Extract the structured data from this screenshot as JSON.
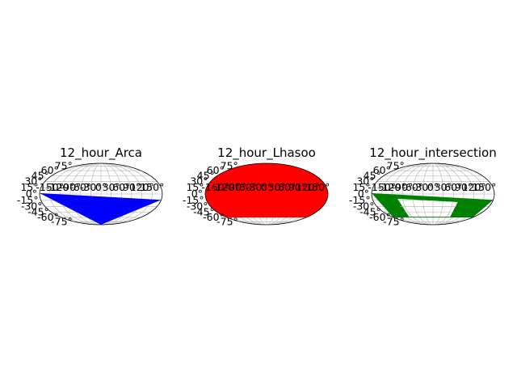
{
  "chart_data": [
    {
      "type": "map",
      "projection": "mollweide",
      "title": "12_hour_Arca",
      "fill_color": "#0000ff",
      "coverage": "region below a declination boundary running from about 0° on the left edge to about -15° on the right edge",
      "lat_ticks": [
        "-75°",
        "-60°",
        "-45°",
        "-30°",
        "-15°",
        "0°",
        "15°",
        "30°",
        "45°",
        "60°",
        "75°"
      ],
      "lon_ticks": [
        "-150°",
        "-120°",
        "-90°",
        "-60°",
        "-30°",
        "0°",
        "30°",
        "60°",
        "90°",
        "120°",
        "150°"
      ],
      "grid": true
    },
    {
      "type": "map",
      "projection": "mollweide",
      "title": "12_hour_Lhasoo",
      "fill_color": "#ff0000",
      "coverage": "entire sky except a cap below about -60° declination",
      "lat_ticks": [
        "-75°",
        "-60°",
        "-45°",
        "-30°",
        "-15°",
        "0°",
        "15°",
        "30°",
        "45°",
        "60°",
        "75°"
      ],
      "lon_ticks": [
        "-150°",
        "-120°",
        "-90°",
        "-60°",
        "-30°",
        "0°",
        "30°",
        "60°",
        "90°",
        "120°",
        "150°"
      ],
      "grid": true
    },
    {
      "type": "map",
      "projection": "mollweide",
      "title": "12_hour_intersection",
      "fill_color": "#008000",
      "coverage": "intersection: band between the Arca boundary and the -60° cap, with an unfilled inner region",
      "lat_ticks": [
        "-75°",
        "-60°",
        "-45°",
        "-30°",
        "-15°",
        "0°",
        "15°",
        "30°",
        "45°",
        "60°",
        "75°"
      ],
      "lon_ticks": [
        "-150°",
        "-120°",
        "-90°",
        "-60°",
        "-30°",
        "0°",
        "30°",
        "60°",
        "90°",
        "120°",
        "150°"
      ],
      "grid": true
    }
  ]
}
